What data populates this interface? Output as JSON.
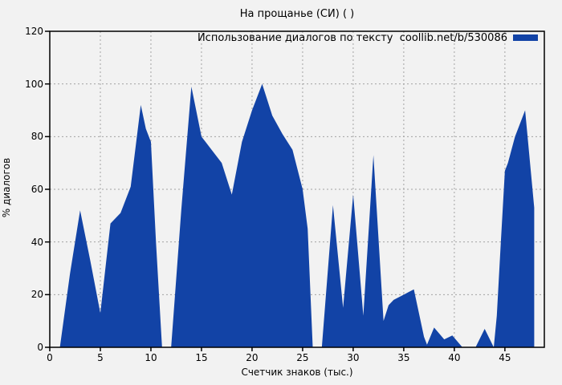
{
  "window": {
    "background": "#f2f2f2"
  },
  "chart_data": {
    "type": "area",
    "title": "На прощанье (СИ) ( )",
    "legend_label": "Использование диалогов по тексту  coollib.net/b/530086",
    "legend_position": "top-right-inside",
    "xlabel": "Счетчик знаков (тыс.)",
    "ylabel": "% диалогов",
    "xlim": [
      0,
      48.9
    ],
    "ylim": [
      0,
      120
    ],
    "x_ticks": [
      0,
      5,
      10,
      15,
      20,
      25,
      30,
      35,
      40,
      45
    ],
    "y_ticks": [
      0,
      20,
      40,
      60,
      80,
      100,
      120
    ],
    "grid": true,
    "grid_style": "dashed",
    "series_color": "#1243a6",
    "axis_color": "#000000",
    "grid_color": "#a3a3a3",
    "points": [
      [
        1,
        0
      ],
      [
        2,
        28
      ],
      [
        3,
        52
      ],
      [
        4,
        33
      ],
      [
        5,
        13
      ],
      [
        6,
        47
      ],
      [
        7,
        51
      ],
      [
        8,
        61
      ],
      [
        9,
        92
      ],
      [
        9.5,
        83
      ],
      [
        10,
        78
      ],
      [
        10.5,
        40
      ],
      [
        11.1,
        0
      ],
      [
        12,
        0
      ],
      [
        13,
        52
      ],
      [
        14,
        99
      ],
      [
        15,
        80
      ],
      [
        16,
        75
      ],
      [
        17,
        70
      ],
      [
        18,
        58
      ],
      [
        19,
        78
      ],
      [
        20,
        90
      ],
      [
        21,
        100
      ],
      [
        22,
        88
      ],
      [
        23,
        81
      ],
      [
        24,
        75
      ],
      [
        25,
        60
      ],
      [
        25.5,
        45
      ],
      [
        26,
        0
      ],
      [
        26.9,
        0
      ],
      [
        28,
        54
      ],
      [
        29,
        15
      ],
      [
        30,
        58
      ],
      [
        31,
        12
      ],
      [
        32,
        73
      ],
      [
        33,
        10
      ],
      [
        33.5,
        16
      ],
      [
        34,
        18
      ],
      [
        35,
        20
      ],
      [
        36,
        22
      ],
      [
        37,
        4
      ],
      [
        37.3,
        1
      ],
      [
        38,
        7.5
      ],
      [
        39,
        3
      ],
      [
        39.8,
        4.5
      ],
      [
        40.8,
        0
      ],
      [
        42.1,
        0
      ],
      [
        43,
        7
      ],
      [
        43.9,
        0
      ],
      [
        44.2,
        12
      ],
      [
        44.6,
        40
      ],
      [
        45,
        67
      ],
      [
        45.3,
        70
      ],
      [
        46,
        80
      ],
      [
        47,
        90
      ],
      [
        47.9,
        53
      ]
    ]
  }
}
